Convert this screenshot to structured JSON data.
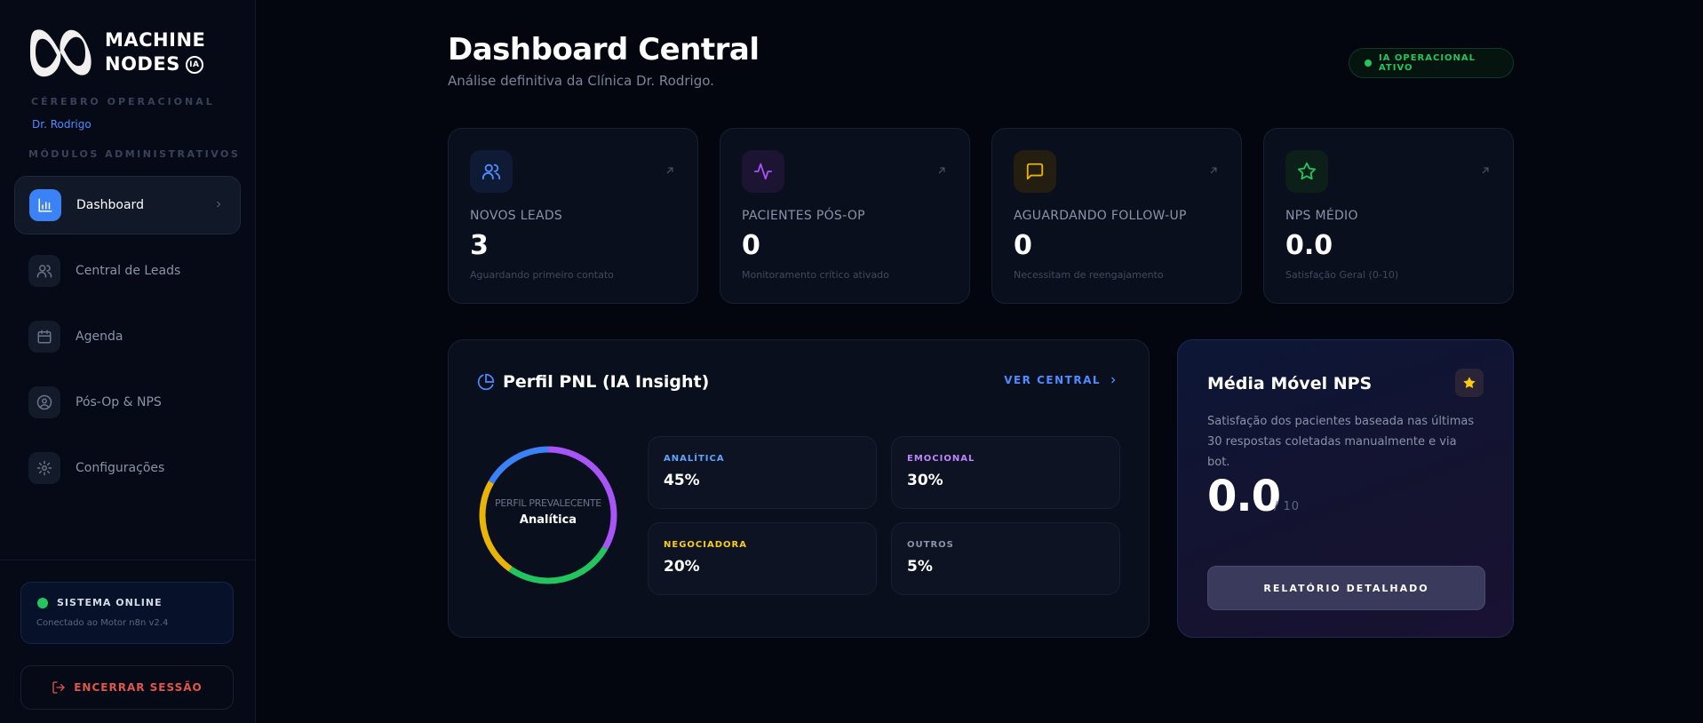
{
  "sidebar": {
    "logo": {
      "line1": "MACHINE",
      "line2": "NODES",
      "badge": "IA"
    },
    "brain_label": "CÉREBRO OPERACIONAL",
    "brain_user": "Dr. Rodrigo",
    "modules_label": "MÓDULOS ADMINISTRATIVOS",
    "items": [
      {
        "label": "Dashboard",
        "icon": "bar-chart-icon",
        "active": true
      },
      {
        "label": "Central de Leads",
        "icon": "users-icon"
      },
      {
        "label": "Agenda",
        "icon": "calendar-icon"
      },
      {
        "label": "Pós-Op & NPS",
        "icon": "user-circle-icon"
      },
      {
        "label": "Configurações",
        "icon": "gear-icon"
      }
    ],
    "status": {
      "title": "SISTEMA ONLINE",
      "subtitle": "Conectado ao Motor n8n v2.4"
    },
    "logout": "ENCERRAR SESSÃO"
  },
  "header": {
    "title": "Dashboard Central",
    "subtitle": "Análise definitiva da Clínica Dr. Rodrigo.",
    "ia_status": "IA OPERACIONAL ATIVO"
  },
  "stats": [
    {
      "label": "NOVOS LEADS",
      "value": "3",
      "sub": "Aguardando primeiro contato",
      "icon": "users-icon",
      "color": "#4f8cff"
    },
    {
      "label": "PACIENTES PÓS-OP",
      "value": "0",
      "sub": "Monitoramento crítico ativado",
      "icon": "activity-icon",
      "color": "#a855f7"
    },
    {
      "label": "AGUARDANDO FOLLOW-UP",
      "value": "0",
      "sub": "Necessitam de reengajamento",
      "icon": "message-icon",
      "color": "#eab308"
    },
    {
      "label": "NPS MÉDIO",
      "value": "0.0",
      "sub": "Satisfação Geral (0-10)",
      "icon": "star-icon",
      "color": "#22c55e"
    }
  ],
  "pnl": {
    "title": "Perfil PNL (IA Insight)",
    "link": "VER CENTRAL",
    "donut_label": "PERFIL PREVALECENTE",
    "donut_value": "Analítica",
    "segments": [
      {
        "label": "ANALÍTICA",
        "value": "45%",
        "percent": 45,
        "color": "#3b82f6"
      },
      {
        "label": "EMOCIONAL",
        "value": "30%",
        "percent": 30,
        "color": "#a855f7"
      },
      {
        "label": "NEGOCIADORA",
        "value": "20%",
        "percent": 20,
        "color": "#eab308"
      },
      {
        "label": "OUTROS",
        "value": "5%",
        "percent": 5,
        "color": "#22c55e"
      }
    ],
    "tile_label_colors": [
      "#60a5fa",
      "#c084fc",
      "#facc15",
      "#8a93a8"
    ]
  },
  "nps": {
    "title": "Média Móvel NPS",
    "description": "Satisfação dos pacientes baseada nas últimas 30 respostas coletadas manualmente e via bot.",
    "value": "0.0",
    "max": "/ 10",
    "button": "RELATÓRIO DETALHADO"
  }
}
